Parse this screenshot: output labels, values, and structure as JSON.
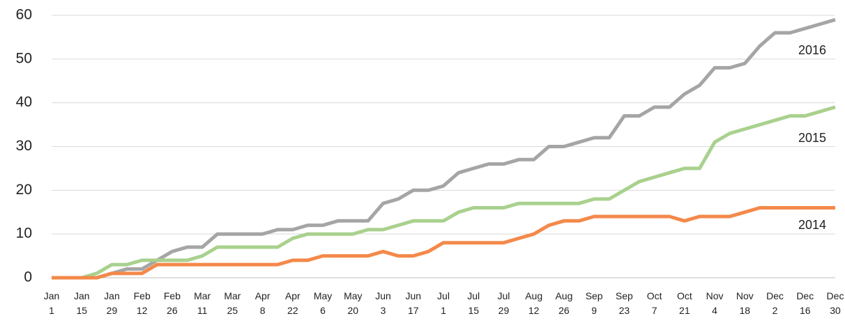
{
  "chart_data": {
    "type": "line",
    "categories": [
      "Jan 1",
      null,
      "Jan 15",
      null,
      "Jan 29",
      null,
      "Feb 12",
      null,
      "Feb 26",
      null,
      "Mar 11",
      null,
      "Mar 25",
      null,
      "Apr 8",
      null,
      "Apr 22",
      null,
      "May 6",
      null,
      "May 20",
      null,
      "Jun 3",
      null,
      "Jun 17",
      null,
      "Jul 1",
      null,
      "Jul 15",
      null,
      "Jul 29",
      null,
      "Aug 12",
      null,
      "Aug 26",
      null,
      "Sep 9",
      null,
      "Sep 23",
      null,
      "Oct 7",
      null,
      "Oct 21",
      null,
      "Nov 4",
      null,
      "Nov 18",
      null,
      "Dec 2",
      null,
      "Dec 16",
      null,
      "Dec 30"
    ],
    "series": [
      {
        "name": "2016",
        "color": "#a5a5a5",
        "values": [
          0,
          0,
          0,
          0,
          1,
          2,
          2,
          4,
          6,
          7,
          7,
          10,
          10,
          10,
          10,
          11,
          11,
          12,
          12,
          13,
          13,
          13,
          17,
          18,
          20,
          20,
          21,
          24,
          25,
          26,
          26,
          27,
          27,
          30,
          30,
          31,
          32,
          32,
          37,
          37,
          39,
          39,
          42,
          44,
          48,
          48,
          49,
          53,
          56,
          56,
          57,
          58,
          59
        ]
      },
      {
        "name": "2015",
        "color": "#a9d18e",
        "values": [
          0,
          0,
          0,
          1,
          3,
          3,
          4,
          4,
          4,
          4,
          5,
          7,
          7,
          7,
          7,
          7,
          9,
          10,
          10,
          10,
          10,
          11,
          11,
          12,
          13,
          13,
          13,
          15,
          16,
          16,
          16,
          17,
          17,
          17,
          17,
          17,
          18,
          18,
          20,
          22,
          23,
          24,
          25,
          25,
          31,
          33,
          34,
          35,
          36,
          37,
          37,
          38,
          39
        ]
      },
      {
        "name": "2014",
        "color": "#f4894a",
        "values": [
          0,
          0,
          0,
          0,
          1,
          1,
          1,
          3,
          3,
          3,
          3,
          3,
          3,
          3,
          3,
          3,
          4,
          4,
          5,
          5,
          5,
          5,
          6,
          5,
          5,
          6,
          8,
          8,
          8,
          8,
          8,
          9,
          10,
          12,
          13,
          13,
          14,
          14,
          14,
          14,
          14,
          14,
          13,
          14,
          14,
          14,
          15,
          16,
          16,
          16,
          16,
          16,
          16
        ]
      }
    ],
    "ylim": [
      0,
      60
    ],
    "yticks": [
      0,
      10,
      20,
      30,
      40,
      50,
      60
    ],
    "grid": true
  }
}
